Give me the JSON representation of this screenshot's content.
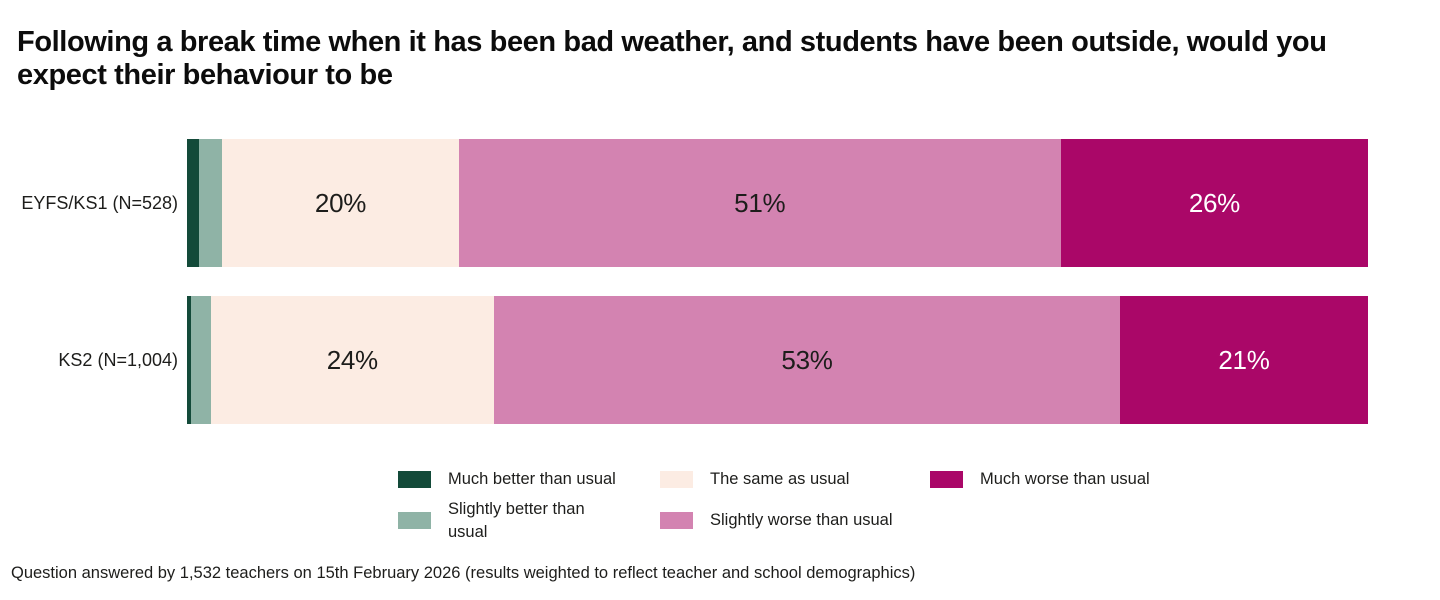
{
  "chart_data": {
    "type": "bar",
    "stacked": true,
    "orientation": "horizontal",
    "title": "Following a break time when it has been bad weather, and students have been outside, would you\nexpect their behaviour to be",
    "note": "Question answered by 1,532 teachers on 15th February 2026 (results weighted to reflect teacher and school demographics)",
    "categories": [
      "EYFS/KS1 (N=528)",
      "KS2 (N=1,004)"
    ],
    "xlim": [
      0,
      100
    ],
    "unit": "%",
    "grid": false,
    "legend_position": "bottom",
    "series": [
      {
        "name": "Much better than usual",
        "color": "#134a39",
        "values": [
          1,
          0.3
        ],
        "labels": [
          "",
          ""
        ],
        "label_color": "#ffffff"
      },
      {
        "name": "Slightly better than usual",
        "color": "#8fb3a6",
        "values": [
          2,
          1.7
        ],
        "labels": [
          "",
          ""
        ],
        "label_color": "#1d1d1b"
      },
      {
        "name": "The same as usual",
        "color": "#fcece3",
        "values": [
          20,
          24
        ],
        "labels": [
          "20%",
          "24%"
        ],
        "label_color": "#1d1d1b"
      },
      {
        "name": "Slightly worse than usual",
        "color": "#d383b1",
        "values": [
          51,
          53
        ],
        "labels": [
          "51%",
          "53%"
        ],
        "label_color": "#1d1d1b"
      },
      {
        "name": "Much worse than usual",
        "color": "#aa0768",
        "values": [
          26,
          21
        ],
        "labels": [
          "26%",
          "21%"
        ],
        "label_color": "#ffffff"
      }
    ]
  },
  "legend": {
    "items": [
      {
        "label": "Much better than usual",
        "color": "#134a39"
      },
      {
        "label": "Slightly better than\nusual",
        "color": "#8fb3a6"
      },
      {
        "label": "The same as usual",
        "color": "#fcece3"
      },
      {
        "label": "Slightly worse than usual",
        "color": "#d383b1"
      },
      {
        "label": "Much worse than usual",
        "color": "#aa0768"
      }
    ]
  }
}
